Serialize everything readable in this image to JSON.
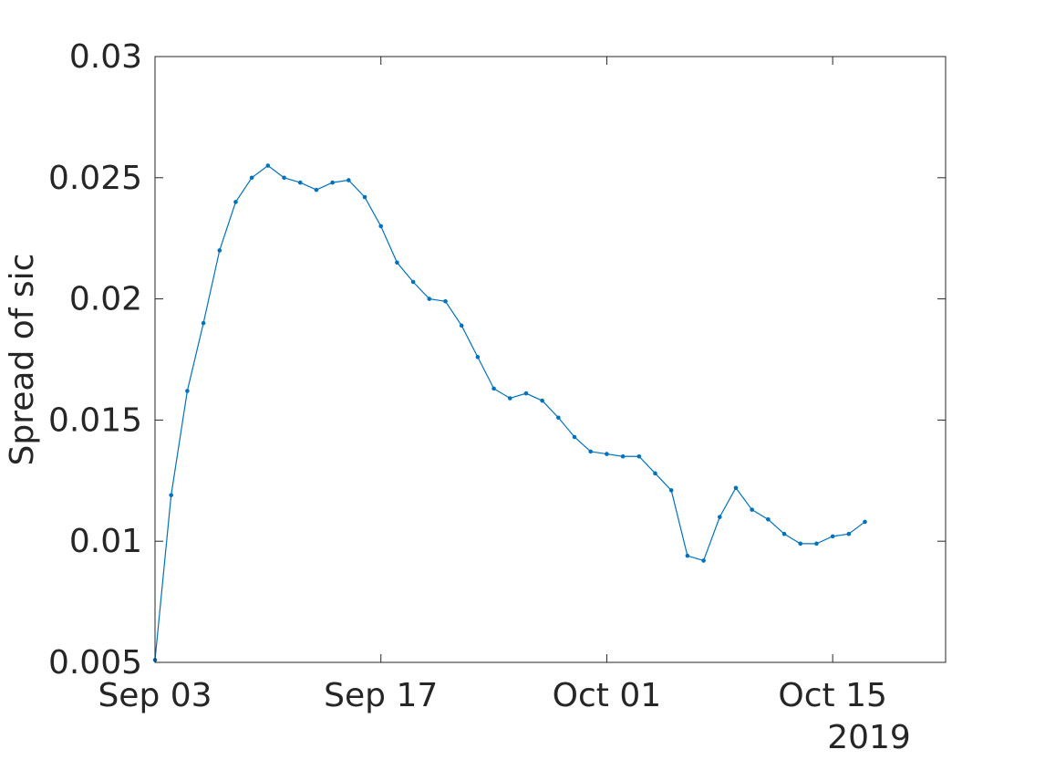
{
  "chart_data": {
    "type": "line",
    "ylabel": "Spread of sic",
    "year_label": "2019",
    "xlim": [
      "2019-09-03",
      "2019-10-22"
    ],
    "ylim": [
      0.005,
      0.03
    ],
    "x_tick_labels": [
      {
        "date": "2019-09-03",
        "label": "Sep 03"
      },
      {
        "date": "2019-09-17",
        "label": "Sep 17"
      },
      {
        "date": "2019-10-01",
        "label": "Oct 01"
      },
      {
        "date": "2019-10-15",
        "label": "Oct 15"
      }
    ],
    "y_ticks": [
      0.005,
      0.01,
      0.015,
      0.02,
      0.025,
      0.03
    ],
    "y_tick_labels": [
      "0.005",
      "0.01",
      "0.015",
      "0.02",
      "0.025",
      "0.03"
    ],
    "line_color": "#0072BD",
    "grid": false,
    "series": [
      {
        "x": [
          "2019-09-03",
          "2019-09-04",
          "2019-09-05",
          "2019-09-06",
          "2019-09-07",
          "2019-09-08",
          "2019-09-09",
          "2019-09-10",
          "2019-09-11",
          "2019-09-12",
          "2019-09-13",
          "2019-09-14",
          "2019-09-15",
          "2019-09-16",
          "2019-09-17",
          "2019-09-18",
          "2019-09-19",
          "2019-09-20",
          "2019-09-21",
          "2019-09-22",
          "2019-09-23",
          "2019-09-24",
          "2019-09-25",
          "2019-09-26",
          "2019-09-27",
          "2019-09-28",
          "2019-09-29",
          "2019-09-30",
          "2019-10-01",
          "2019-10-02",
          "2019-10-03",
          "2019-10-04",
          "2019-10-05",
          "2019-10-06",
          "2019-10-07",
          "2019-10-08",
          "2019-10-09",
          "2019-10-10",
          "2019-10-11",
          "2019-10-12",
          "2019-10-13",
          "2019-10-14",
          "2019-10-15",
          "2019-10-16",
          "2019-10-17"
        ],
        "y": [
          0.0051,
          0.0119,
          0.0162,
          0.019,
          0.022,
          0.024,
          0.025,
          0.0255,
          0.025,
          0.0248,
          0.0245,
          0.0248,
          0.0249,
          0.0242,
          0.023,
          0.0215,
          0.0207,
          0.02,
          0.0199,
          0.0189,
          0.0176,
          0.0163,
          0.0159,
          0.0161,
          0.0158,
          0.0151,
          0.0143,
          0.0137,
          0.0136,
          0.0135,
          0.0135,
          0.0128,
          0.0121,
          0.0094,
          0.0092,
          0.011,
          0.0122,
          0.0113,
          0.0109,
          0.0103,
          0.0099,
          0.0099,
          0.0102,
          0.0103,
          0.0108
        ]
      }
    ]
  }
}
